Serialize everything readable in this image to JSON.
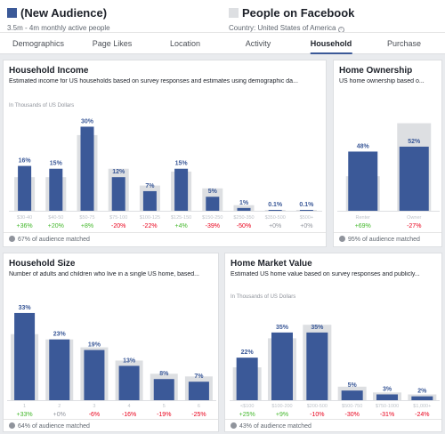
{
  "header": {
    "audience": {
      "name": "(New Audience)",
      "sub": "3.5m - 4m monthly active people"
    },
    "compare": {
      "name": "People on Facebook",
      "sub": "Country: United States of America",
      "info": "i"
    }
  },
  "tabs": [
    {
      "label": "Demographics",
      "active": false
    },
    {
      "label": "Page Likes",
      "active": false
    },
    {
      "label": "Location",
      "active": false
    },
    {
      "label": "Activity",
      "active": false
    },
    {
      "label": "Household",
      "active": true
    },
    {
      "label": "Purchase",
      "active": false
    }
  ],
  "colors": {
    "audience": "#3b5998",
    "baseline": "#dddfe2",
    "pos": "#42b72a",
    "neg": "#e9001b",
    "neutral": "#90949c"
  },
  "panels": {
    "income": {
      "title": "Household Income",
      "desc": "Estimated income for US households based on survey responses and estimates using demographic da...",
      "unit": "In Thousands of US Dollars",
      "matched": "67% of audience matched"
    },
    "ownership": {
      "title": "Home Ownership",
      "desc": "US home ownership based o...",
      "unit": "",
      "matched": "95% of audience matched"
    },
    "size": {
      "title": "Household Size",
      "desc": "Number of adults and children who live in a single US home, based...",
      "unit": "",
      "matched": "64% of audience matched"
    },
    "value": {
      "title": "Home Market Value",
      "desc": "Estimated US home value based on survey responses and publicly...",
      "unit": "In Thousands of US Dollars",
      "matched": "43% of audience matched"
    }
  },
  "chart_data": [
    {
      "type": "bar",
      "title": "Household Income",
      "ylabel": "In Thousands of US Dollars",
      "categories": [
        "$30-40",
        "$40-50",
        "$50-75",
        "$75-100",
        "$100-125",
        "$125-150",
        "$150-250",
        "$250-350",
        "$350-500",
        "$500+"
      ],
      "series": [
        {
          "values": [
            16,
            15,
            30,
            12,
            7,
            15,
            5,
            1,
            0.1,
            0.1
          ]
        },
        {
          "values": [
            12,
            12,
            27,
            15,
            9,
            14,
            8,
            2,
            0.1,
            0.1
          ]
        }
      ],
      "labels": [
        "16%",
        "15%",
        "30%",
        "12%",
        "7%",
        "15%",
        "5%",
        "1%",
        "0.1%",
        "0.1%"
      ],
      "deltas": [
        "+36%",
        "+20%",
        "+8%",
        "-20%",
        "-22%",
        "+4%",
        "-39%",
        "-50%",
        "+0%",
        "+0%"
      ],
      "ylim": [
        0,
        33
      ]
    },
    {
      "type": "bar",
      "title": "Home Ownership",
      "categories": [
        "Renter",
        "Owner"
      ],
      "series": [
        {
          "values": [
            48,
            52
          ]
        },
        {
          "values": [
            28,
            71
          ]
        }
      ],
      "labels": [
        "48%",
        "52%"
      ],
      "deltas": [
        "+69%",
        "-27%"
      ],
      "ylim": [
        0,
        75
      ]
    },
    {
      "type": "bar",
      "title": "Household Size",
      "categories": [
        "1",
        "2",
        "3",
        "4",
        "5",
        "6"
      ],
      "series": [
        {
          "values": [
            33,
            23,
            19,
            13,
            8,
            7
          ]
        },
        {
          "values": [
            25,
            23,
            20,
            15,
            10,
            9
          ]
        }
      ],
      "labels": [
        "33%",
        "23%",
        "19%",
        "13%",
        "8%",
        "7%"
      ],
      "deltas": [
        "+33%",
        "+0%",
        "-6%",
        "-16%",
        "-19%",
        "-25%"
      ],
      "ylim": [
        0,
        35
      ]
    },
    {
      "type": "bar",
      "title": "Home Market Value",
      "ylabel": "In Thousands of US Dollars",
      "categories": [
        "<$100",
        "$100-200",
        "$200-500",
        "$500-750",
        "$750-1000",
        "$1,000+"
      ],
      "series": [
        {
          "values": [
            22,
            35,
            35,
            5,
            3,
            2
          ]
        },
        {
          "values": [
            17,
            32,
            39,
            7,
            4,
            3
          ]
        }
      ],
      "labels": [
        "22%",
        "35%",
        "35%",
        "5%",
        "3%",
        "2%"
      ],
      "deltas": [
        "+25%",
        "+9%",
        "-10%",
        "-30%",
        "-31%",
        "-24%"
      ],
      "ylim": [
        0,
        40
      ]
    }
  ]
}
